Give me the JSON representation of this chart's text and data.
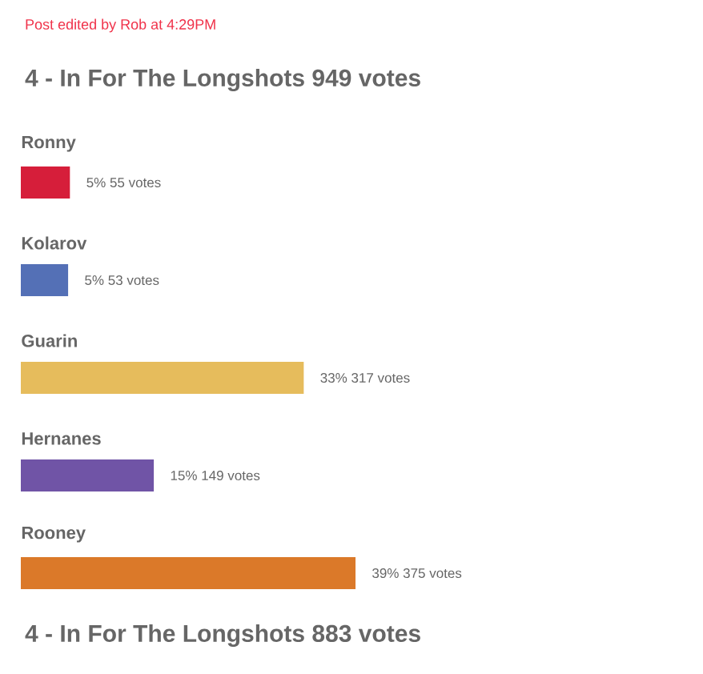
{
  "chart_data": {
    "type": "bar",
    "orientation": "horizontal",
    "title": "4 - In For The Longshots   949 votes",
    "annotations": [
      "Post edited by Rob at 4:29PM",
      "4 - In For The Longshots   883 votes"
    ],
    "categories": [
      "Ronny",
      "Kolarov",
      "Guarin",
      "Hernanes",
      "Rooney"
    ],
    "values": [
      55,
      53,
      317,
      149,
      375
    ],
    "colors": [
      "#d61e3a",
      "#5470b6",
      "#e6bc5c",
      "#7054a6",
      "#db7929"
    ],
    "value_labels": [
      "5% 55 votes",
      "5% 53 votes",
      "33% 317 votes",
      "15% 149 votes",
      "39% 375 votes"
    ]
  }
}
